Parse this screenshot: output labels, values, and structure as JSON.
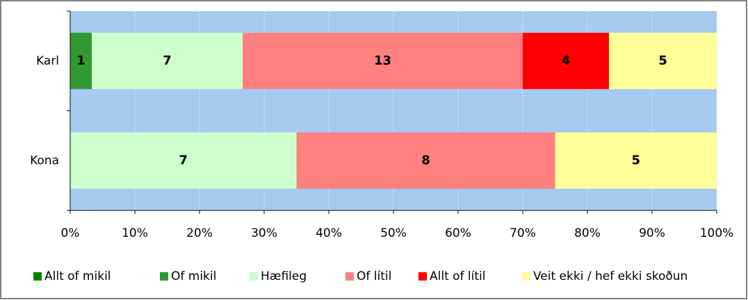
{
  "chart_data": {
    "type": "bar",
    "orientation": "horizontal",
    "stacked_percent": true,
    "categories": [
      "Karl",
      "Kona"
    ],
    "series": [
      {
        "name": "Allt of mikil",
        "color": "#008000",
        "values": [
          0,
          0
        ]
      },
      {
        "name": "Of mikil",
        "color": "#339933",
        "values": [
          1,
          0
        ]
      },
      {
        "name": "Hæfileg",
        "color": "#ccffcc",
        "values": [
          7,
          7
        ]
      },
      {
        "name": "Of lítil",
        "color": "#ff8080",
        "values": [
          13,
          8
        ]
      },
      {
        "name": "Allt of lítil",
        "color": "#ff0000",
        "values": [
          4,
          0
        ]
      },
      {
        "name": "Veit ekki / hef ekki skoðun",
        "color": "#ffff99",
        "values": [
          5,
          5
        ]
      }
    ],
    "xlim": [
      0,
      100
    ],
    "xticks": [
      {
        "value": 0,
        "label": "0%"
      },
      {
        "value": 10,
        "label": "10%"
      },
      {
        "value": 20,
        "label": "20%"
      },
      {
        "value": 30,
        "label": "30%"
      },
      {
        "value": 40,
        "label": "40%"
      },
      {
        "value": 50,
        "label": "50%"
      },
      {
        "value": 60,
        "label": "60%"
      },
      {
        "value": 70,
        "label": "70%"
      },
      {
        "value": 80,
        "label": "80%"
      },
      {
        "value": 90,
        "label": "90%"
      },
      {
        "value": 100,
        "label": "100%"
      }
    ],
    "grid": true,
    "legend": "bottom"
  }
}
